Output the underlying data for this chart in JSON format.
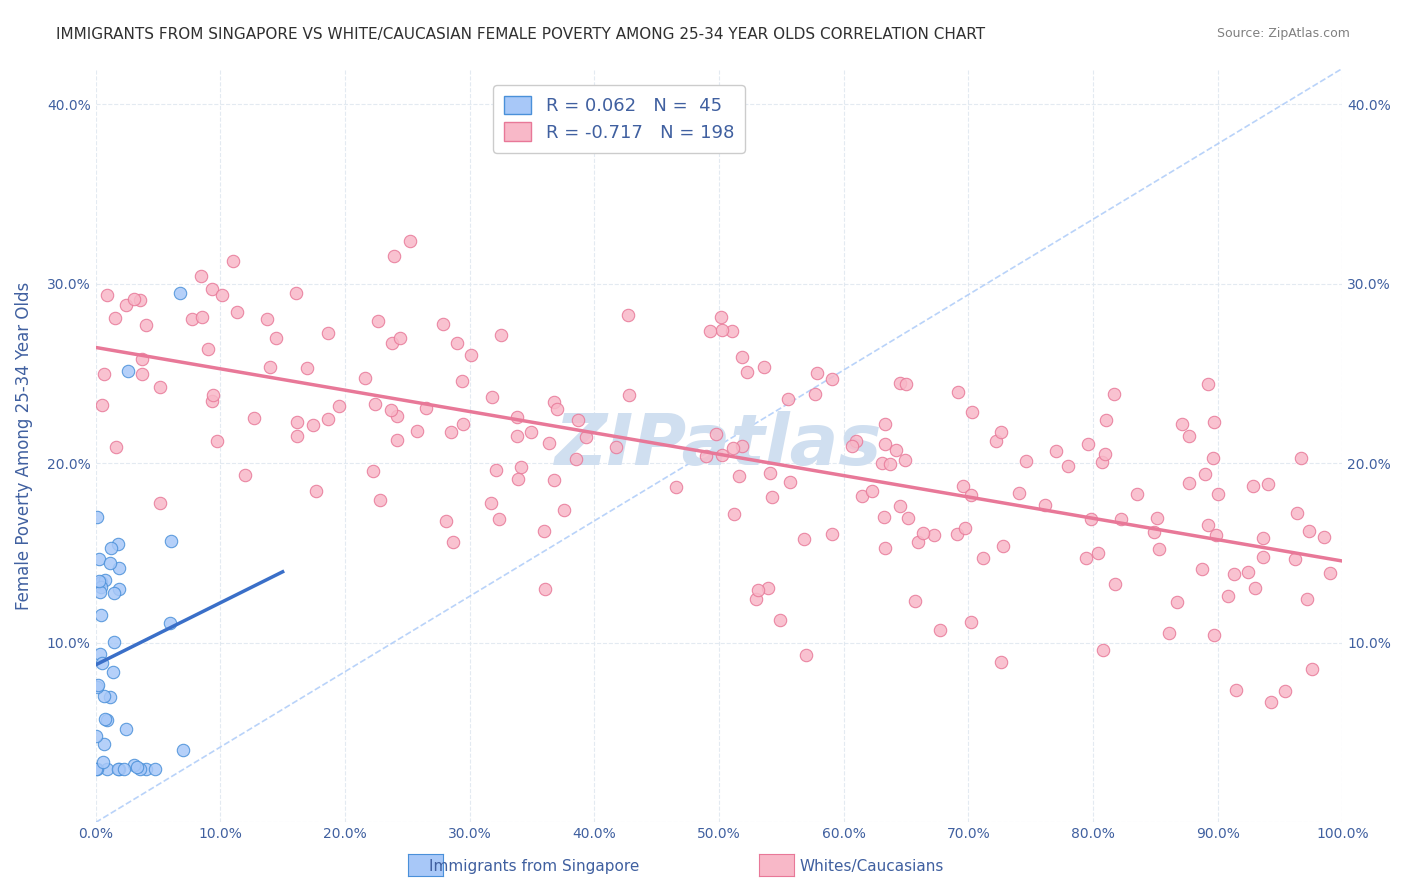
{
  "title": "IMMIGRANTS FROM SINGAPORE VS WHITE/CAUCASIAN FEMALE POVERTY AMONG 25-34 YEAR OLDS CORRELATION CHART",
  "source": "Source: ZipAtlas.com",
  "xlabel": "",
  "ylabel": "Female Poverty Among 25-34 Year Olds",
  "xlim": [
    0,
    1.0
  ],
  "ylim": [
    0,
    0.42
  ],
  "xticks": [
    0.0,
    0.1,
    0.2,
    0.3,
    0.4,
    0.5,
    0.6,
    0.7,
    0.8,
    0.9,
    1.0
  ],
  "xticklabels": [
    "0.0%",
    "10.0%",
    "20.0%",
    "30.0%",
    "40.0%",
    "50.0%",
    "60.0%",
    "70.0%",
    "80.0%",
    "90.0%",
    "100.0%"
  ],
  "yticks": [
    0.0,
    0.1,
    0.2,
    0.3,
    0.4
  ],
  "yticklabels": [
    "",
    "10.0%",
    "20.0%",
    "30.0%",
    "40.0%"
  ],
  "right_yticks": [
    0.1,
    0.2,
    0.3,
    0.4
  ],
  "right_yticklabels": [
    "10.0%",
    "20.0%",
    "30.0%",
    "40.0%"
  ],
  "blue_color": "#a8c8f8",
  "blue_edge_color": "#4a90d9",
  "blue_line_color": "#3a6fc8",
  "pink_color": "#f8b8c8",
  "pink_edge_color": "#e87898",
  "pink_line_color": "#e87898",
  "diagonal_color": "#a8c8f8",
  "bg_color": "#ffffff",
  "watermark": "ZIPatlas",
  "watermark_color": "#d0dff0",
  "grid_color": "#e0e8f0",
  "title_color": "#303030",
  "source_color": "#808080",
  "axis_label_color": "#4060a0",
  "tick_color": "#4060a0",
  "singapore_R": 0.062,
  "singapore_N": 45,
  "white_R": -0.717,
  "white_N": 198,
  "random_seed": 42
}
